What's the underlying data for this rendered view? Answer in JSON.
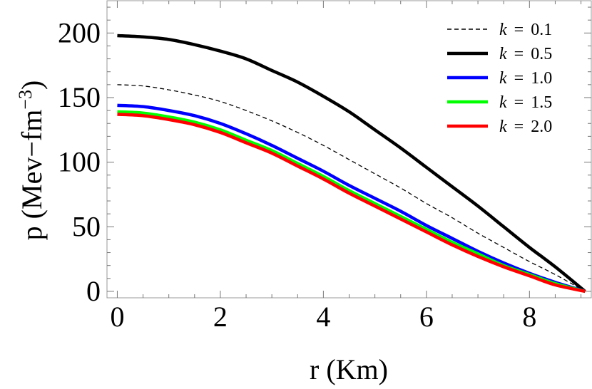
{
  "chart_data": {
    "type": "line",
    "xlabel": "r (Km)",
    "ylabel_main": "p (Mev−fm",
    "ylabel_sup": "−3",
    "ylabel_close": ")",
    "xlim": [
      -0.2,
      9.2
    ],
    "ylim": [
      -5,
      225
    ],
    "xticks": [
      0,
      2,
      4,
      6,
      8
    ],
    "yticks": [
      0,
      50,
      100,
      150,
      200
    ],
    "grid": false,
    "legend_position": "top-right",
    "x": [
      0,
      0.5,
      1,
      1.5,
      2,
      2.5,
      3,
      3.5,
      4,
      4.5,
      5,
      5.5,
      6,
      6.5,
      7,
      7.5,
      8,
      8.5,
      9.08
    ],
    "series": [
      {
        "name_var": "k",
        "name_eq": "=",
        "name_val": "0.1",
        "color": "#000000",
        "dash": true,
        "width": 1.3,
        "values": [
          160,
          159,
          156,
          152,
          147,
          140,
          132,
          123,
          113,
          102,
          91,
          80,
          68,
          57,
          45,
          34,
          23,
          13,
          0
        ]
      },
      {
        "name_var": "k",
        "name_eq": "=",
        "name_val": "0.5",
        "color": "#000000",
        "dash": false,
        "width": 4.5,
        "values": [
          198,
          197,
          195,
          191,
          186,
          180,
          171,
          162,
          151,
          139,
          125,
          111,
          96,
          81,
          66,
          50,
          34,
          19,
          0
        ]
      },
      {
        "name_var": "k",
        "name_eq": "=",
        "name_val": "1.0",
        "color": "#0000ff",
        "dash": false,
        "width": 4.5,
        "values": [
          144,
          143,
          140,
          136,
          130,
          122,
          113,
          103,
          93,
          82,
          72,
          62,
          51,
          41,
          31,
          22,
          14,
          7,
          0
        ]
      },
      {
        "name_var": "k",
        "name_eq": "=",
        "name_val": "1.5",
        "color": "#00ff00",
        "dash": false,
        "width": 4.5,
        "values": [
          139,
          138,
          135,
          131,
          125,
          117,
          109,
          99,
          89,
          78,
          68,
          58,
          48,
          38,
          29,
          20,
          13,
          6,
          0
        ]
      },
      {
        "name_var": "k",
        "name_eq": "=",
        "name_val": "2.0",
        "color": "#ff0000",
        "dash": false,
        "width": 4.5,
        "values": [
          137,
          136,
          133,
          129,
          123,
          115,
          107,
          97,
          87,
          76,
          66,
          56,
          46,
          36,
          27,
          19,
          12,
          5,
          0
        ]
      }
    ]
  }
}
